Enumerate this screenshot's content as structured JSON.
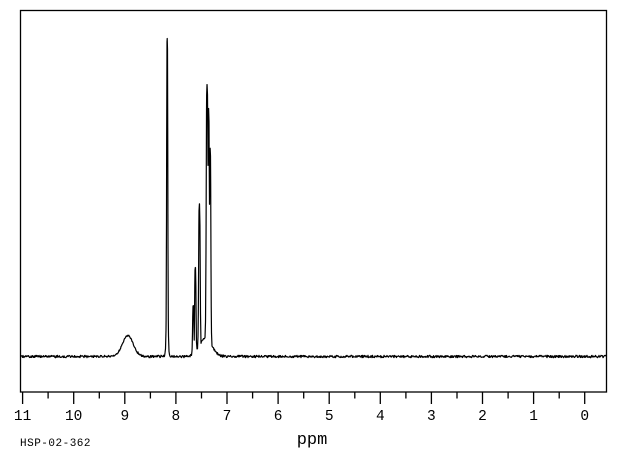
{
  "meta": {
    "id_label": "HSP-02-362"
  },
  "chart_data": {
    "type": "line",
    "title": "",
    "xlabel": "ppm",
    "ylabel": "",
    "background_color": "#ffffff",
    "trace_color": "#000000",
    "axis_color": "#000000",
    "x_axis": {
      "unit": "ppm",
      "direction": "reversed",
      "min": -0.44,
      "max": 11.03,
      "major_ticks": [
        11,
        10,
        9,
        8,
        7,
        6,
        5,
        4,
        3,
        2,
        1,
        0
      ],
      "minor_tick_step": 0.5,
      "grid": false
    },
    "y_axis": {
      "visible_scale": false,
      "baseline_intensity": 0,
      "max_relative_intensity": 1.0
    },
    "baseline_noise_amplitude": 0.004,
    "peaks": [
      {
        "ppm": 8.94,
        "rel_intensity": 0.066,
        "width_ppm": 0.105,
        "shape": "broad"
      },
      {
        "ppm": 8.17,
        "rel_intensity": 1.0,
        "width_ppm": 0.013,
        "shape": "sharp"
      },
      {
        "ppm": 7.66,
        "rel_intensity": 0.16,
        "width_ppm": 0.015,
        "shape": "sharp"
      },
      {
        "ppm": 7.62,
        "rel_intensity": 0.28,
        "width_ppm": 0.015,
        "shape": "sharp"
      },
      {
        "ppm": 7.54,
        "rel_intensity": 0.48,
        "width_ppm": 0.017,
        "shape": "sharp"
      },
      {
        "ppm": 7.42,
        "rel_intensity": 0.058,
        "width_ppm": 0.12,
        "shape": "envelope"
      },
      {
        "ppm": 7.39,
        "rel_intensity": 0.855,
        "width_ppm": 0.019,
        "shape": "sharp"
      },
      {
        "ppm": 7.36,
        "rel_intensity": 0.78,
        "width_ppm": 0.016,
        "shape": "sharp"
      },
      {
        "ppm": 7.33,
        "rel_intensity": 0.655,
        "width_ppm": 0.016,
        "shape": "sharp"
      }
    ],
    "legend": null
  }
}
